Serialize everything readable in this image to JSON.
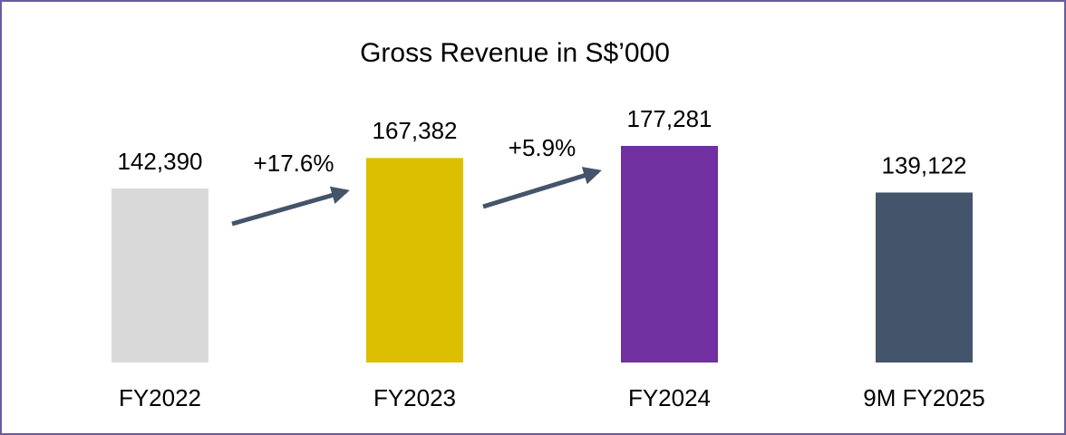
{
  "chart_data": {
    "type": "bar",
    "title": "Gross Revenue in S$’000",
    "categories": [
      "FY2022",
      "FY2023",
      "FY2024",
      "9M FY2025"
    ],
    "values": [
      142390,
      167382,
      177281,
      139122
    ],
    "value_labels": [
      "142,390",
      "167,382",
      "177,281",
      "139,122"
    ],
    "colors": [
      "#d9d9d9",
      "#dcbf00",
      "#7030a0",
      "#44546a"
    ],
    "annotations": [
      "+17.6%",
      "+5.9%"
    ]
  }
}
